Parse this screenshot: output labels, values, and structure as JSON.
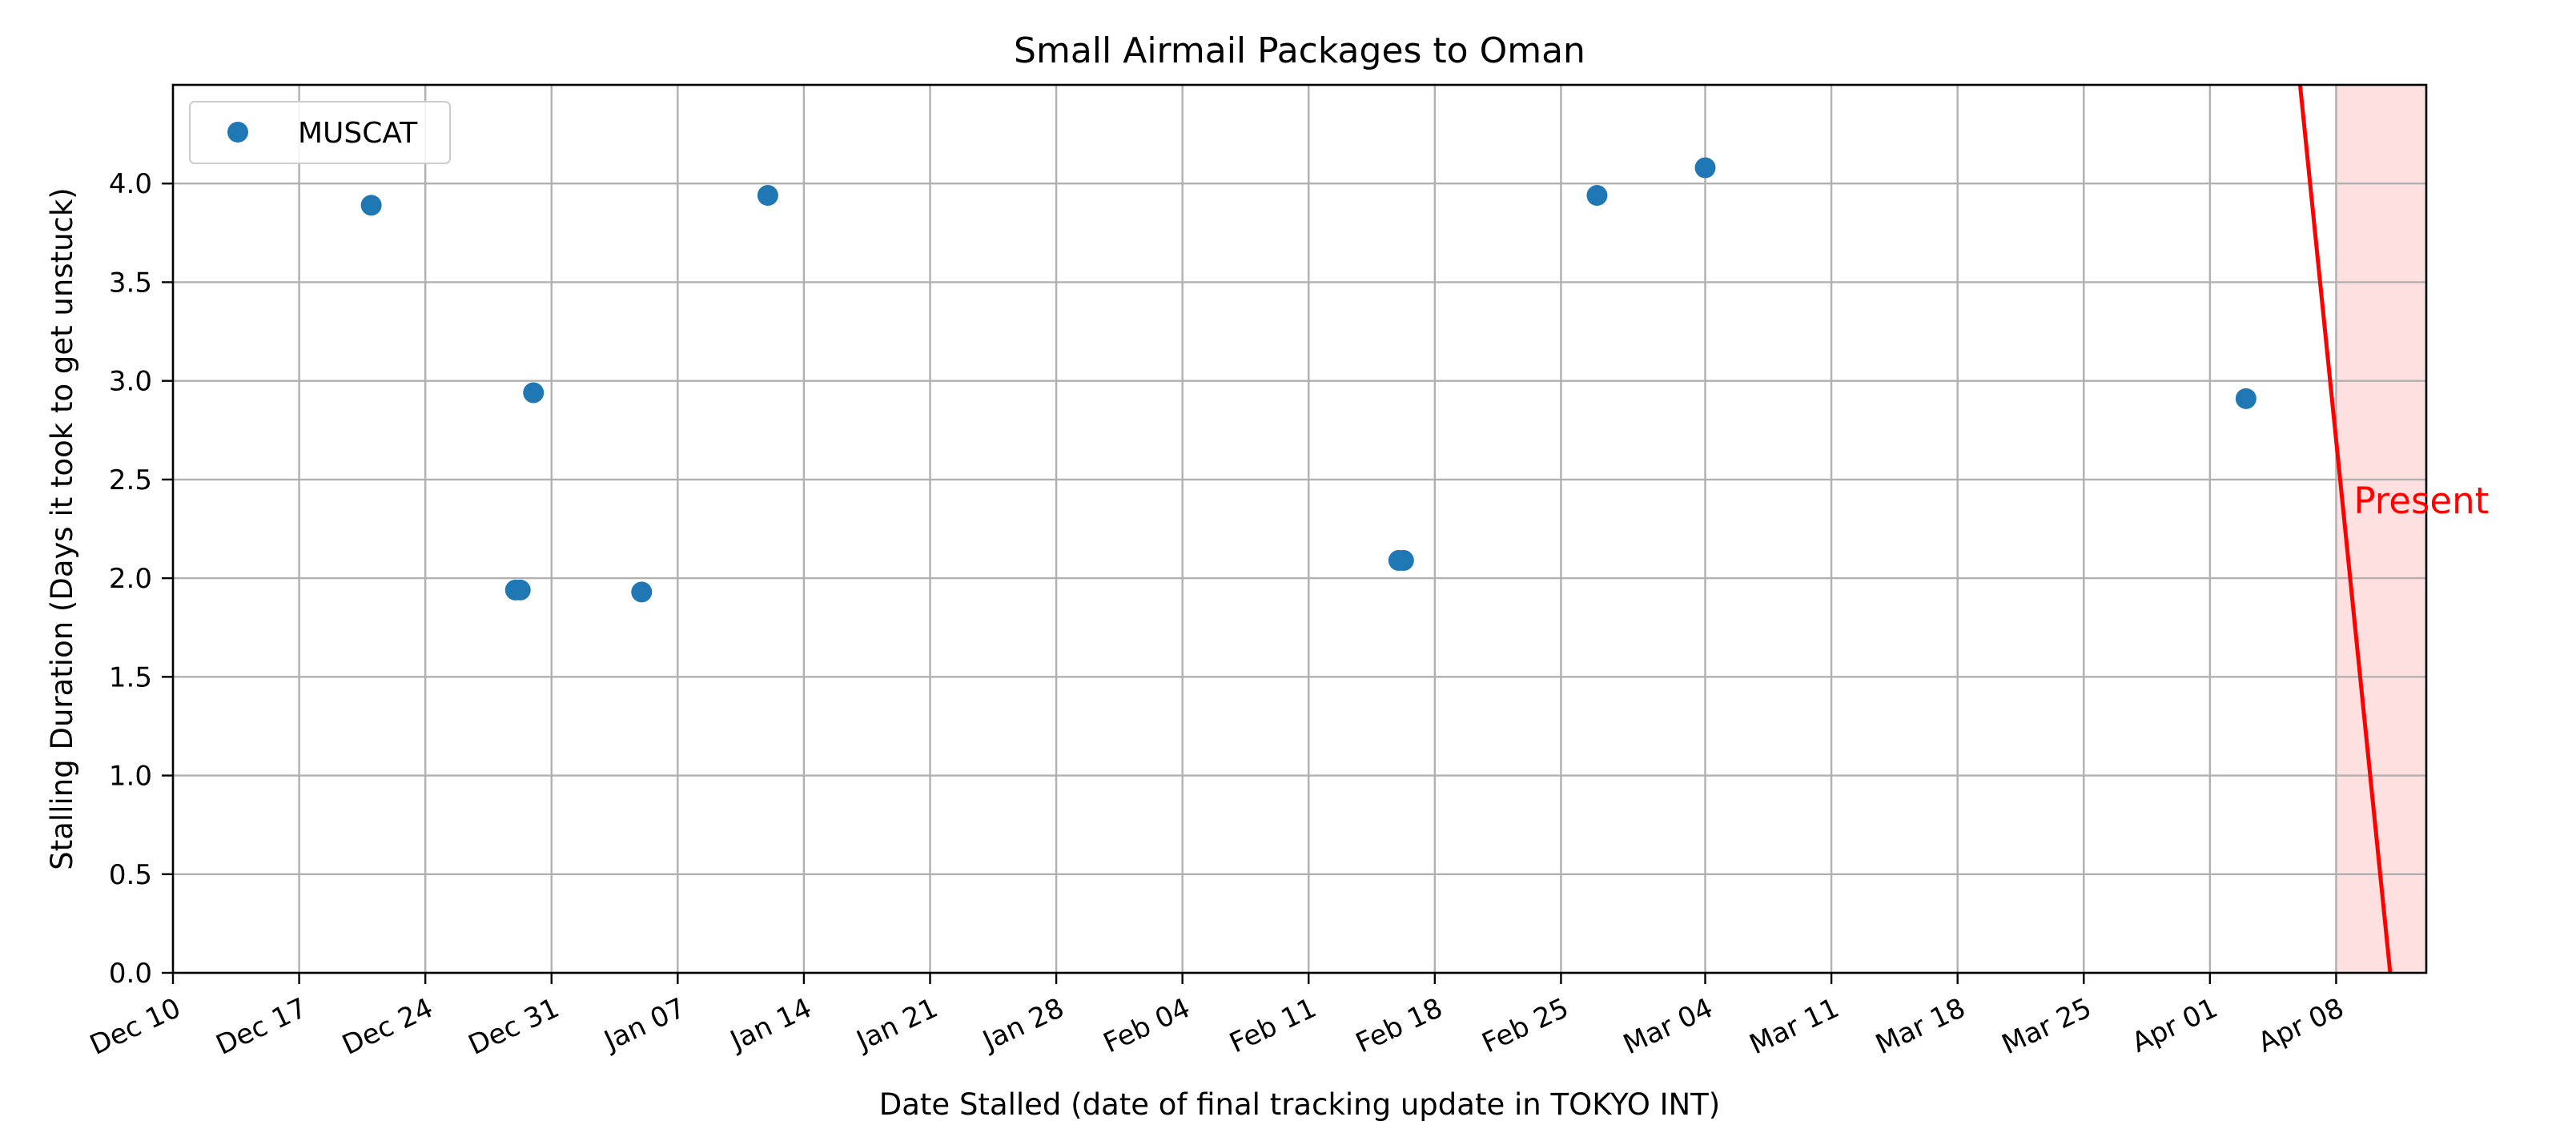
{
  "chart_data": {
    "type": "scatter",
    "title": "Small Airmail Packages to Oman",
    "xlabel": "Date Stalled (date of final tracking update in TOKYO INT)",
    "ylabel": "Stalling Duration (Days it took to get unstuck)",
    "xlim": [
      "Dec 10",
      "Apr 13"
    ],
    "ylim": [
      0,
      4.5
    ],
    "grid": true,
    "legend_position": "top-left",
    "x_ticks": [
      "Dec 10",
      "Dec 17",
      "Dec 24",
      "Dec 31",
      "Jan 07",
      "Jan 14",
      "Jan 21",
      "Jan 28",
      "Feb 04",
      "Feb 11",
      "Feb 18",
      "Feb 25",
      "Mar 04",
      "Mar 11",
      "Mar 18",
      "Mar 25",
      "Apr 01",
      "Apr 08"
    ],
    "y_ticks": [
      "0.0",
      "0.5",
      "1.0",
      "1.5",
      "2.0",
      "2.5",
      "3.0",
      "3.5",
      "4.0"
    ],
    "series": [
      {
        "name": "MUSCAT",
        "color": "#1f77b4",
        "points": [
          {
            "x": "Dec 21",
            "y": 3.89
          },
          {
            "x": "Dec 29",
            "y": 1.94
          },
          {
            "x": "Dec 29",
            "y": 1.94
          },
          {
            "x": "Dec 30",
            "y": 2.94
          },
          {
            "x": "Jan 05",
            "y": 1.93
          },
          {
            "x": "Jan 12",
            "y": 3.94
          },
          {
            "x": "Feb 16",
            "y": 2.09
          },
          {
            "x": "Feb 16",
            "y": 2.09
          },
          {
            "x": "Feb 27",
            "y": 3.94
          },
          {
            "x": "Mar 04",
            "y": 4.08
          },
          {
            "x": "Apr 03",
            "y": 2.91
          }
        ]
      }
    ],
    "present_marker": {
      "label": "Present",
      "color": "#ff0000",
      "shade_color": "#ffe0e0",
      "line_top": {
        "x": "Apr 06",
        "y": 4.5
      },
      "line_bottom": {
        "x": "Apr 11",
        "y": 0.0
      },
      "shade_from": "Apr 08"
    }
  }
}
